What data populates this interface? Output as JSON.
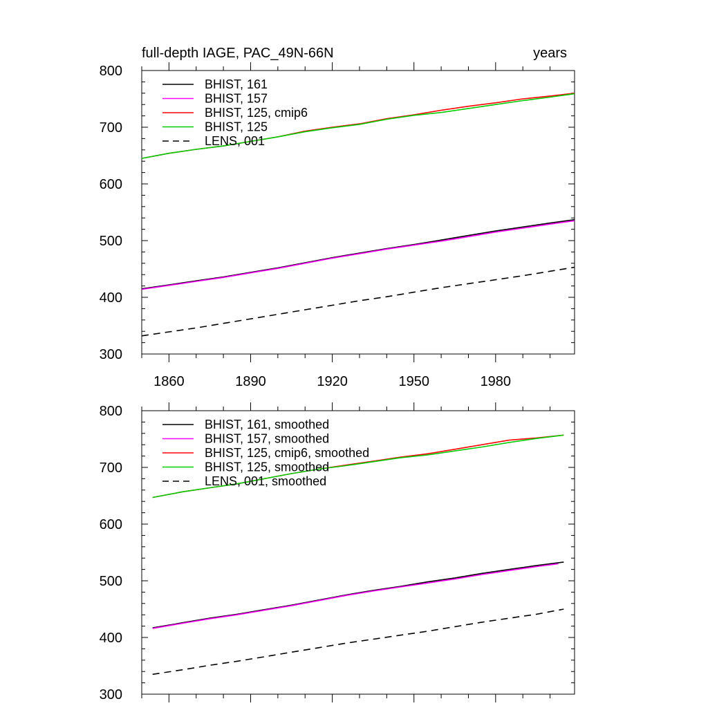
{
  "figure": {
    "top_left_title": "full-depth IAGE, PAC_49N-66N",
    "top_right_title": "years"
  },
  "chart_data": [
    {
      "type": "line",
      "title": "full-depth IAGE, PAC_49N-66N",
      "units": "years",
      "xlim": [
        1850,
        2009
      ],
      "ylim": [
        300,
        800
      ],
      "x_ticks": [
        1860,
        1890,
        1920,
        1950,
        1980
      ],
      "x_tick_labels": [
        "1860",
        "1890",
        "1920",
        "1950",
        "1980"
      ],
      "y_ticks": [
        300,
        400,
        500,
        600,
        700,
        800
      ],
      "y_tick_labels": [
        "300",
        "400",
        "500",
        "600",
        "700",
        "800"
      ],
      "legend_position": "top-left",
      "series": [
        {
          "name": "BHIST, 161",
          "color": "#000000",
          "dash": "solid",
          "x": [
            1850,
            1860,
            1870,
            1880,
            1890,
            1900,
            1910,
            1920,
            1930,
            1940,
            1950,
            1960,
            1970,
            1980,
            1990,
            2000,
            2009
          ],
          "y": [
            415,
            422,
            429,
            436,
            444,
            452,
            461,
            470,
            478,
            486,
            493,
            501,
            509,
            517,
            524,
            531,
            537
          ]
        },
        {
          "name": "BHIST, 157",
          "color": "#ff00ff",
          "dash": "solid",
          "x": [
            1850,
            1860,
            1870,
            1880,
            1890,
            1900,
            1910,
            1920,
            1930,
            1940,
            1950,
            1960,
            1970,
            1980,
            1990,
            2000,
            2009
          ],
          "y": [
            414,
            421,
            428,
            435,
            443,
            451,
            460,
            469,
            477,
            485,
            492,
            499,
            507,
            515,
            522,
            529,
            535
          ]
        },
        {
          "name": "BHIST, 125, cmip6",
          "color": "#ff0000",
          "dash": "solid",
          "x": [
            1850,
            1860,
            1870,
            1880,
            1890,
            1900,
            1910,
            1920,
            1930,
            1940,
            1950,
            1960,
            1970,
            1980,
            1990,
            2000,
            2009
          ],
          "y": [
            645,
            654,
            661,
            667,
            675,
            683,
            693,
            700,
            706,
            715,
            722,
            730,
            737,
            743,
            750,
            755,
            760
          ]
        },
        {
          "name": "BHIST, 125",
          "color": "#00cc00",
          "dash": "solid",
          "x": [
            1850,
            1860,
            1870,
            1880,
            1890,
            1900,
            1910,
            1920,
            1930,
            1940,
            1950,
            1960,
            1970,
            1980,
            1990,
            2000,
            2009
          ],
          "y": [
            645,
            654,
            661,
            667,
            675,
            683,
            692,
            699,
            705,
            714,
            721,
            726,
            733,
            740,
            747,
            753,
            759
          ]
        },
        {
          "name": "LENS, 001",
          "color": "#000000",
          "dash": "dashed",
          "x": [
            1850,
            1860,
            1870,
            1880,
            1890,
            1900,
            1910,
            1920,
            1930,
            1940,
            1950,
            1960,
            1970,
            1980,
            1990,
            2000,
            2009
          ],
          "y": [
            332,
            339,
            346,
            354,
            362,
            370,
            378,
            386,
            394,
            401,
            409,
            417,
            424,
            431,
            438,
            446,
            453
          ]
        }
      ]
    },
    {
      "type": "line",
      "xlim": [
        1850,
        2009
      ],
      "ylim": [
        300,
        800
      ],
      "y_ticks": [
        300,
        400,
        500,
        600,
        700,
        800
      ],
      "y_tick_labels": [
        "300",
        "400",
        "500",
        "600",
        "700",
        "800"
      ],
      "legend_position": "top-left",
      "series": [
        {
          "name": "BHIST, 161, smoothed",
          "color": "#000000",
          "dash": "solid",
          "x": [
            1854,
            1865,
            1875,
            1885,
            1895,
            1905,
            1915,
            1925,
            1935,
            1945,
            1955,
            1965,
            1975,
            1985,
            1995,
            2005
          ],
          "y": [
            417,
            426,
            434,
            441,
            449,
            457,
            466,
            475,
            483,
            490,
            498,
            505,
            513,
            520,
            527,
            533
          ]
        },
        {
          "name": "BHIST, 157, smoothed",
          "color": "#ff00ff",
          "dash": "solid",
          "x": [
            1854,
            1865,
            1875,
            1885,
            1895,
            1905,
            1915,
            1925,
            1935,
            1945,
            1955,
            1965,
            1975,
            1985,
            1995,
            2003
          ],
          "y": [
            416,
            425,
            433,
            440,
            448,
            456,
            465,
            474,
            482,
            489,
            496,
            503,
            511,
            518,
            525,
            530
          ]
        },
        {
          "name": "BHIST, 125, cmip6, smoothed",
          "color": "#ff0000",
          "dash": "solid",
          "x": [
            1854,
            1865,
            1875,
            1885,
            1895,
            1905,
            1915,
            1925,
            1935,
            1945,
            1955,
            1965,
            1975,
            1985,
            1995,
            2005
          ],
          "y": [
            647,
            657,
            664,
            671,
            680,
            689,
            697,
            704,
            711,
            718,
            724,
            732,
            740,
            748,
            752,
            757
          ]
        },
        {
          "name": "BHIST, 125, smoothed",
          "color": "#00cc00",
          "dash": "solid",
          "x": [
            1854,
            1865,
            1875,
            1885,
            1895,
            1905,
            1915,
            1925,
            1935,
            1945,
            1955,
            1965,
            1975,
            1985,
            1995,
            2005
          ],
          "y": [
            647,
            657,
            664,
            671,
            680,
            689,
            697,
            703,
            710,
            717,
            722,
            729,
            736,
            744,
            751,
            757
          ]
        },
        {
          "name": "LENS, 001, smoothed",
          "color": "#000000",
          "dash": "dashed",
          "x": [
            1854,
            1865,
            1875,
            1885,
            1895,
            1905,
            1915,
            1925,
            1935,
            1945,
            1955,
            1965,
            1975,
            1985,
            1995,
            2005
          ],
          "y": [
            335,
            343,
            351,
            358,
            366,
            374,
            382,
            390,
            397,
            404,
            411,
            419,
            427,
            434,
            441,
            450
          ]
        }
      ]
    }
  ]
}
